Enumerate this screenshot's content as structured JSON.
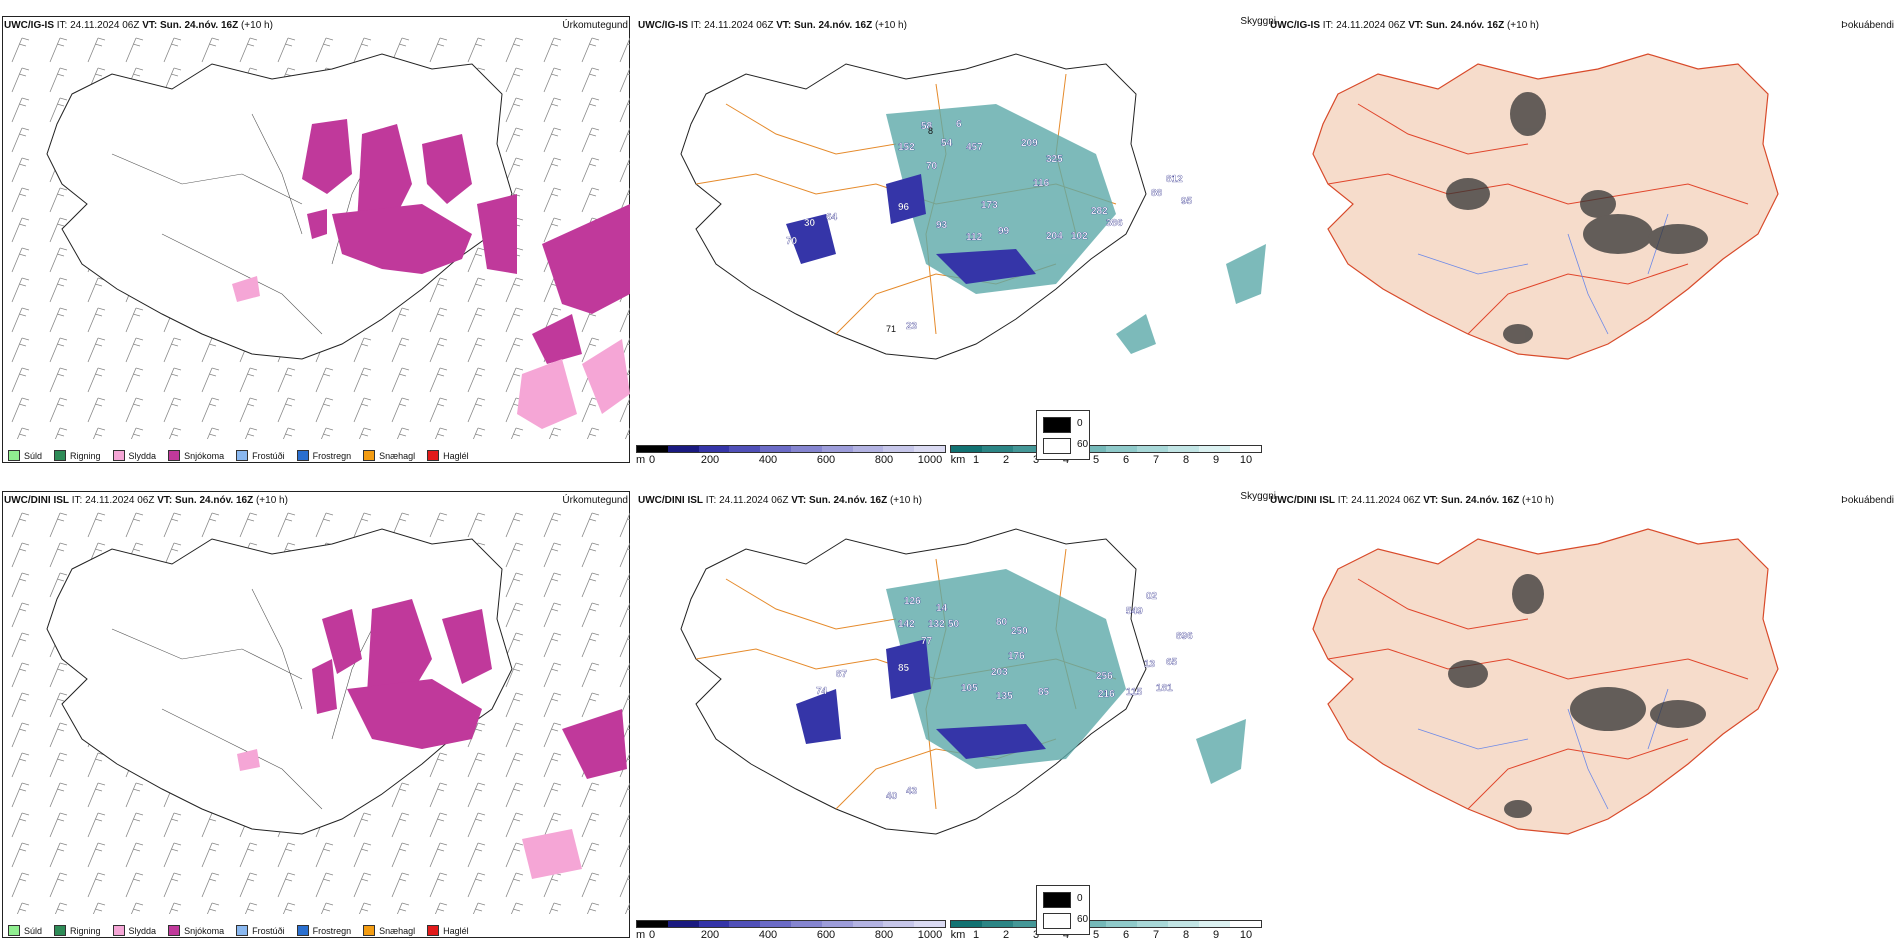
{
  "panels": {
    "top": {
      "model": "UWC/IG-IS",
      "it_label": "IT:",
      "it_value": "24.11.2024 06Z",
      "vt_label": "VT:",
      "vt_value": "Sun. 24.nóv. 16Z",
      "lead": "(+10 h)",
      "titles": [
        "Úrkomutegund",
        "Skyggni",
        "Þokuábendi"
      ],
      "visibility_labels": [
        "8",
        "58",
        "6",
        "152",
        "54",
        "457",
        "70",
        "209",
        "325",
        "116",
        "173",
        "282",
        "812",
        "88",
        "95",
        "96",
        "30",
        "64",
        "70",
        "93",
        "112",
        "99",
        "204",
        "102",
        "386",
        "71",
        "23"
      ]
    },
    "bottom": {
      "model": "UWC/DINI ISL",
      "it_label": "IT:",
      "it_value": "24.11.2024 06Z",
      "vt_label": "VT:",
      "vt_value": "Sun. 24.nóv. 16Z",
      "lead": "(+10 h)",
      "titles": [
        "Úrkomutegund",
        "Skyggni",
        "Þokuábendi"
      ],
      "visibility_labels": [
        "126",
        "14",
        "142",
        "132",
        "50",
        "77",
        "80",
        "250",
        "549",
        "02",
        "176",
        "896",
        "203",
        "256",
        "13",
        "65",
        "87",
        "74",
        "85",
        "105",
        "135",
        "85",
        "216",
        "115",
        "181",
        "40",
        "43"
      ]
    }
  },
  "precip_legend": [
    {
      "label": "Súld",
      "color": "#90ee90"
    },
    {
      "label": "Rigning",
      "color": "#2e8b57"
    },
    {
      "label": "Slydda",
      "color": "#f5a6d6"
    },
    {
      "label": "Snjókoma",
      "color": "#c0399b"
    },
    {
      "label": "Frostúði",
      "color": "#8ab8f0"
    },
    {
      "label": "Frostregn",
      "color": "#2a6fcf"
    },
    {
      "label": "Snæhagl",
      "color": "#f39c12"
    },
    {
      "label": "Haglél",
      "color": "#e21b1b"
    }
  ],
  "ceiling_bar": {
    "unit": "m",
    "ticks": [
      "0",
      "200",
      "400",
      "600",
      "800",
      "1000"
    ],
    "colors": [
      "#000000",
      "#1a1a80",
      "#3535a8",
      "#5050b8",
      "#6b6bc6",
      "#8585d0",
      "#9d9dda",
      "#b3b3e2",
      "#c7c7ea",
      "#dadaf2"
    ]
  },
  "visibility_bar": {
    "unit": "km",
    "ticks": [
      "1",
      "2",
      "3",
      "4",
      "5",
      "6",
      "7",
      "8",
      "9",
      "10"
    ],
    "colors": [
      "#127272",
      "#2b8585",
      "#449797",
      "#5ca9a9",
      "#75b9b9",
      "#8fcaca",
      "#a8d8d8",
      "#c2e5e5",
      "#dbf1f1",
      "#ffffff"
    ]
  },
  "fog_legend": {
    "items": [
      {
        "label": "0",
        "color": "#000000"
      },
      {
        "label": "60",
        "color": "#ffffff"
      }
    ]
  },
  "colors": {
    "snow": "#c0399b",
    "sleet": "#f5a6d6",
    "roads_orange": "#e58a2b",
    "roads_red": "#e0452b",
    "land_fog": "#f6dccb",
    "rivers": "#6b88e8",
    "coast": "#222222"
  }
}
